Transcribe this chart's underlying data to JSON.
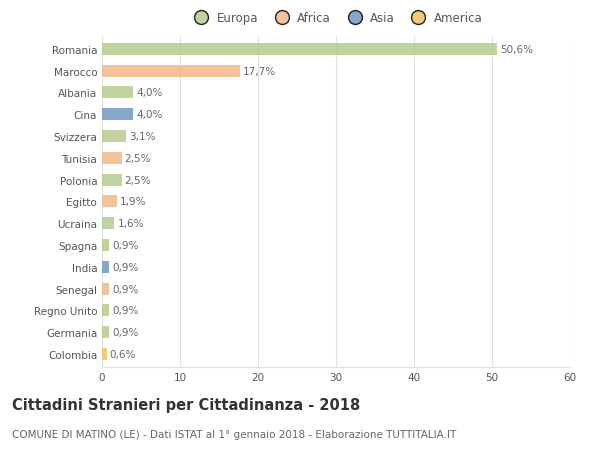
{
  "categories": [
    "Romania",
    "Marocco",
    "Albania",
    "Cina",
    "Svizzera",
    "Tunisia",
    "Polonia",
    "Egitto",
    "Ucraina",
    "Spagna",
    "India",
    "Senegal",
    "Regno Unito",
    "Germania",
    "Colombia"
  ],
  "values": [
    50.6,
    17.7,
    4.0,
    4.0,
    3.1,
    2.5,
    2.5,
    1.9,
    1.6,
    0.9,
    0.9,
    0.9,
    0.9,
    0.9,
    0.6
  ],
  "labels": [
    "50,6%",
    "17,7%",
    "4,0%",
    "4,0%",
    "3,1%",
    "2,5%",
    "2,5%",
    "1,9%",
    "1,6%",
    "0,9%",
    "0,9%",
    "0,9%",
    "0,9%",
    "0,9%",
    "0,6%"
  ],
  "colors": [
    "#b5cc8e",
    "#f0b98a",
    "#b5cc8e",
    "#7098c0",
    "#b5cc8e",
    "#f0b98a",
    "#b5cc8e",
    "#f0b98a",
    "#b5cc8e",
    "#b5cc8e",
    "#7098c0",
    "#f0b98a",
    "#b5cc8e",
    "#b5cc8e",
    "#f0c060"
  ],
  "legend": [
    {
      "label": "Europa",
      "color": "#b5cc8e"
    },
    {
      "label": "Africa",
      "color": "#f0b98a"
    },
    {
      "label": "Asia",
      "color": "#7098c0"
    },
    {
      "label": "America",
      "color": "#f0c060"
    }
  ],
  "xlim": [
    0,
    60
  ],
  "xticks": [
    0,
    10,
    20,
    30,
    40,
    50,
    60
  ],
  "title": "Cittadini Stranieri per Cittadinanza - 2018",
  "subtitle": "COMUNE DI MATINO (LE) - Dati ISTAT al 1° gennaio 2018 - Elaborazione TUTTITALIA.IT",
  "background_color": "#ffffff",
  "grid_color": "#e0e0e0",
  "bar_height": 0.55,
  "label_fontsize": 7.5,
  "tick_fontsize": 7.5,
  "title_fontsize": 10.5,
  "subtitle_fontsize": 7.5,
  "bar_alpha": 0.85
}
